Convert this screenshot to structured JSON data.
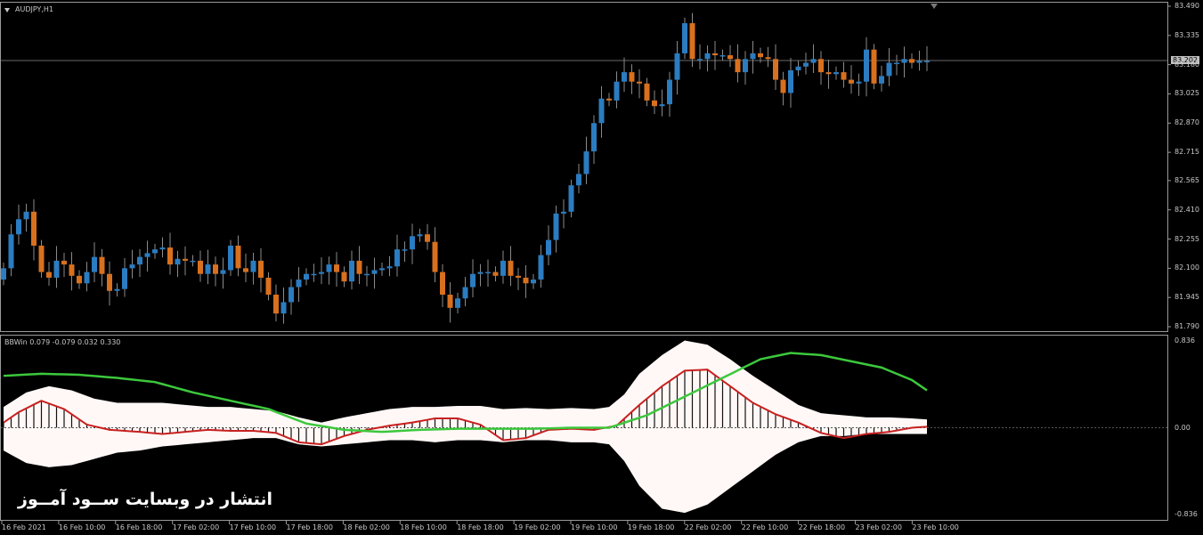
{
  "chart_window": {
    "symbol_label": "AUDJPY,H1",
    "indicator_label": "BBWin 0.079 -0.079 0.032 0.330",
    "current_price_label": "83.202",
    "watermark_text": "انتشار در وبسایت ســود آمــوز"
  },
  "chart_data": [
    {
      "type": "candlestick",
      "title": "AUDJPY,H1",
      "xlabel": "",
      "ylabel": "",
      "ylim": [
        81.79,
        83.49
      ],
      "price_ticks": [
        "83.490",
        "83.335",
        "83.180",
        "83.025",
        "82.870",
        "82.715",
        "82.565",
        "82.410",
        "82.255",
        "82.100",
        "81.945",
        "81.790"
      ],
      "current_price": 83.202,
      "time_ticks": [
        "16 Feb 2021",
        "16 Feb 10:00",
        "16 Feb 18:00",
        "17 Feb 02:00",
        "17 Feb 10:00",
        "17 Feb 18:00",
        "18 Feb 02:00",
        "18 Feb 10:00",
        "18 Feb 18:00",
        "19 Feb 02:00",
        "19 Feb 10:00",
        "19 Feb 18:00",
        "22 Feb 02:00",
        "22 Feb 10:00",
        "22 Feb 18:00",
        "23 Feb 02:00",
        "23 Feb 10:00"
      ],
      "up_color": "#2b7cc0",
      "down_color": "#d8701e",
      "background": "#000000",
      "closes": [
        82.1,
        82.28,
        82.36,
        82.4,
        82.22,
        82.08,
        82.05,
        82.14,
        82.12,
        82.06,
        82.02,
        82.08,
        82.16,
        82.07,
        81.98,
        81.99,
        82.1,
        82.12,
        82.16,
        82.18,
        82.2,
        82.21,
        82.12,
        82.15,
        82.14,
        82.14,
        82.07,
        82.12,
        82.07,
        82.09,
        82.22,
        82.1,
        82.08,
        82.14,
        82.05,
        81.96,
        81.86,
        81.92,
        82.0,
        82.04,
        82.07,
        82.07,
        82.08,
        82.12,
        82.08,
        82.03,
        82.14,
        82.07,
        82.07,
        82.09,
        82.1,
        82.11,
        82.2,
        82.2,
        82.27,
        82.28,
        82.24,
        82.08,
        81.96,
        81.89,
        81.94,
        82.0,
        82.07,
        82.08,
        82.08,
        82.06,
        82.14,
        82.06,
        82.05,
        82.02,
        82.04,
        82.17,
        82.25,
        82.39,
        82.4,
        82.54,
        82.6,
        82.72,
        82.87,
        83.0,
        82.99,
        83.09,
        83.14,
        83.09,
        83.08,
        82.99,
        82.96,
        82.97,
        83.1,
        83.24,
        83.4,
        83.21,
        83.21,
        83.24,
        83.23,
        83.23,
        83.21,
        83.14,
        83.21,
        83.24,
        83.22,
        83.21,
        83.1,
        83.03,
        83.15,
        83.17,
        83.19,
        83.21,
        83.14,
        83.13,
        83.14,
        83.1,
        83.08,
        83.09,
        83.26,
        83.08,
        83.12,
        83.19,
        83.19,
        83.21,
        83.19,
        83.2,
        83.2
      ]
    },
    {
      "type": "line",
      "title": "BBWin 0.079 -0.079 0.032 0.330",
      "xlabel": "",
      "ylabel": "",
      "ylim": [
        -0.836,
        0.836
      ],
      "value_ticks": [
        "0.836",
        "0.00",
        "-0.836"
      ],
      "series": [
        {
          "name": "",
          "role": "histogram",
          "color": "#ffffff",
          "x": [
            0,
            2,
            5,
            8,
            11,
            14,
            18,
            21,
            24,
            27,
            30,
            33,
            36,
            39,
            42,
            45,
            48,
            51,
            54,
            57,
            60,
            63,
            66,
            69,
            72,
            75,
            78,
            81,
            84,
            87,
            90,
            93,
            96,
            99,
            102,
            105,
            108,
            111,
            114,
            117,
            120,
            122
          ],
          "values": [
            0.05,
            0.15,
            0.26,
            0.18,
            0.03,
            -0.02,
            -0.04,
            -0.06,
            -0.04,
            -0.02,
            -0.03,
            -0.03,
            -0.05,
            -0.14,
            -0.16,
            -0.08,
            -0.02,
            0.02,
            0.05,
            0.09,
            0.09,
            0.03,
            -0.12,
            -0.1,
            -0.02,
            -0.01,
            -0.02,
            0.02,
            0.22,
            0.4,
            0.55,
            0.56,
            0.4,
            0.24,
            0.13,
            0.05,
            -0.05,
            -0.1,
            -0.06,
            -0.04,
            0.0,
            0.01
          ]
        },
        {
          "name": "",
          "role": "signal",
          "color": "#c82020",
          "x": [
            0,
            2,
            5,
            8,
            11,
            14,
            18,
            21,
            24,
            27,
            30,
            33,
            36,
            39,
            42,
            45,
            48,
            51,
            54,
            57,
            60,
            63,
            66,
            69,
            72,
            75,
            78,
            81,
            84,
            87,
            90,
            93,
            96,
            99,
            102,
            105,
            108,
            111,
            114,
            117,
            120,
            122
          ],
          "values": [
            0.05,
            0.15,
            0.26,
            0.18,
            0.03,
            -0.02,
            -0.04,
            -0.06,
            -0.04,
            -0.02,
            -0.03,
            -0.03,
            -0.05,
            -0.14,
            -0.16,
            -0.08,
            -0.02,
            0.02,
            0.05,
            0.09,
            0.09,
            0.03,
            -0.12,
            -0.1,
            -0.02,
            -0.01,
            -0.02,
            0.02,
            0.22,
            0.4,
            0.55,
            0.56,
            0.4,
            0.24,
            0.13,
            0.05,
            -0.05,
            -0.1,
            -0.06,
            -0.04,
            0.0,
            0.01
          ]
        },
        {
          "name": "",
          "role": "band",
          "color": "#fff8f6",
          "x": [
            0,
            3,
            6,
            9,
            12,
            15,
            18,
            21,
            24,
            27,
            30,
            33,
            36,
            39,
            42,
            45,
            48,
            51,
            54,
            57,
            60,
            63,
            66,
            69,
            72,
            75,
            78,
            80,
            82,
            84,
            87,
            90,
            93,
            96,
            99,
            102,
            105,
            108,
            111,
            114,
            117,
            120,
            122
          ],
          "upper": [
            0.2,
            0.34,
            0.4,
            0.36,
            0.28,
            0.24,
            0.24,
            0.24,
            0.22,
            0.2,
            0.2,
            0.18,
            0.16,
            0.1,
            0.05,
            0.1,
            0.14,
            0.18,
            0.2,
            0.2,
            0.21,
            0.21,
            0.18,
            0.19,
            0.18,
            0.19,
            0.18,
            0.2,
            0.32,
            0.52,
            0.7,
            0.84,
            0.8,
            0.66,
            0.5,
            0.36,
            0.22,
            0.14,
            0.12,
            0.1,
            0.1,
            0.09,
            0.08
          ],
          "lower": [
            -0.22,
            -0.34,
            -0.38,
            -0.36,
            -0.3,
            -0.24,
            -0.22,
            -0.18,
            -0.16,
            -0.14,
            -0.12,
            -0.1,
            -0.1,
            -0.16,
            -0.18,
            -0.16,
            -0.14,
            -0.12,
            -0.12,
            -0.14,
            -0.12,
            -0.12,
            -0.14,
            -0.12,
            -0.12,
            -0.14,
            -0.14,
            -0.16,
            -0.32,
            -0.56,
            -0.78,
            -0.82,
            -0.74,
            -0.58,
            -0.42,
            -0.26,
            -0.14,
            -0.08,
            -0.08,
            -0.06,
            -0.06,
            -0.06,
            -0.06
          ]
        },
        {
          "name": "",
          "role": "width",
          "color": "#3cc83c",
          "x": [
            0,
            5,
            10,
            15,
            20,
            25,
            30,
            35,
            40,
            45,
            50,
            55,
            60,
            65,
            70,
            75,
            80,
            85,
            90,
            95,
            100,
            104,
            108,
            112,
            116,
            120,
            122
          ],
          "values": [
            0.5,
            0.52,
            0.51,
            0.48,
            0.44,
            0.34,
            0.26,
            0.18,
            0.04,
            -0.02,
            -0.04,
            -0.02,
            -0.01,
            -0.01,
            -0.01,
            0.0,
            0.0,
            0.12,
            0.3,
            0.48,
            0.66,
            0.72,
            0.7,
            0.64,
            0.58,
            0.46,
            0.36
          ]
        }
      ]
    }
  ]
}
